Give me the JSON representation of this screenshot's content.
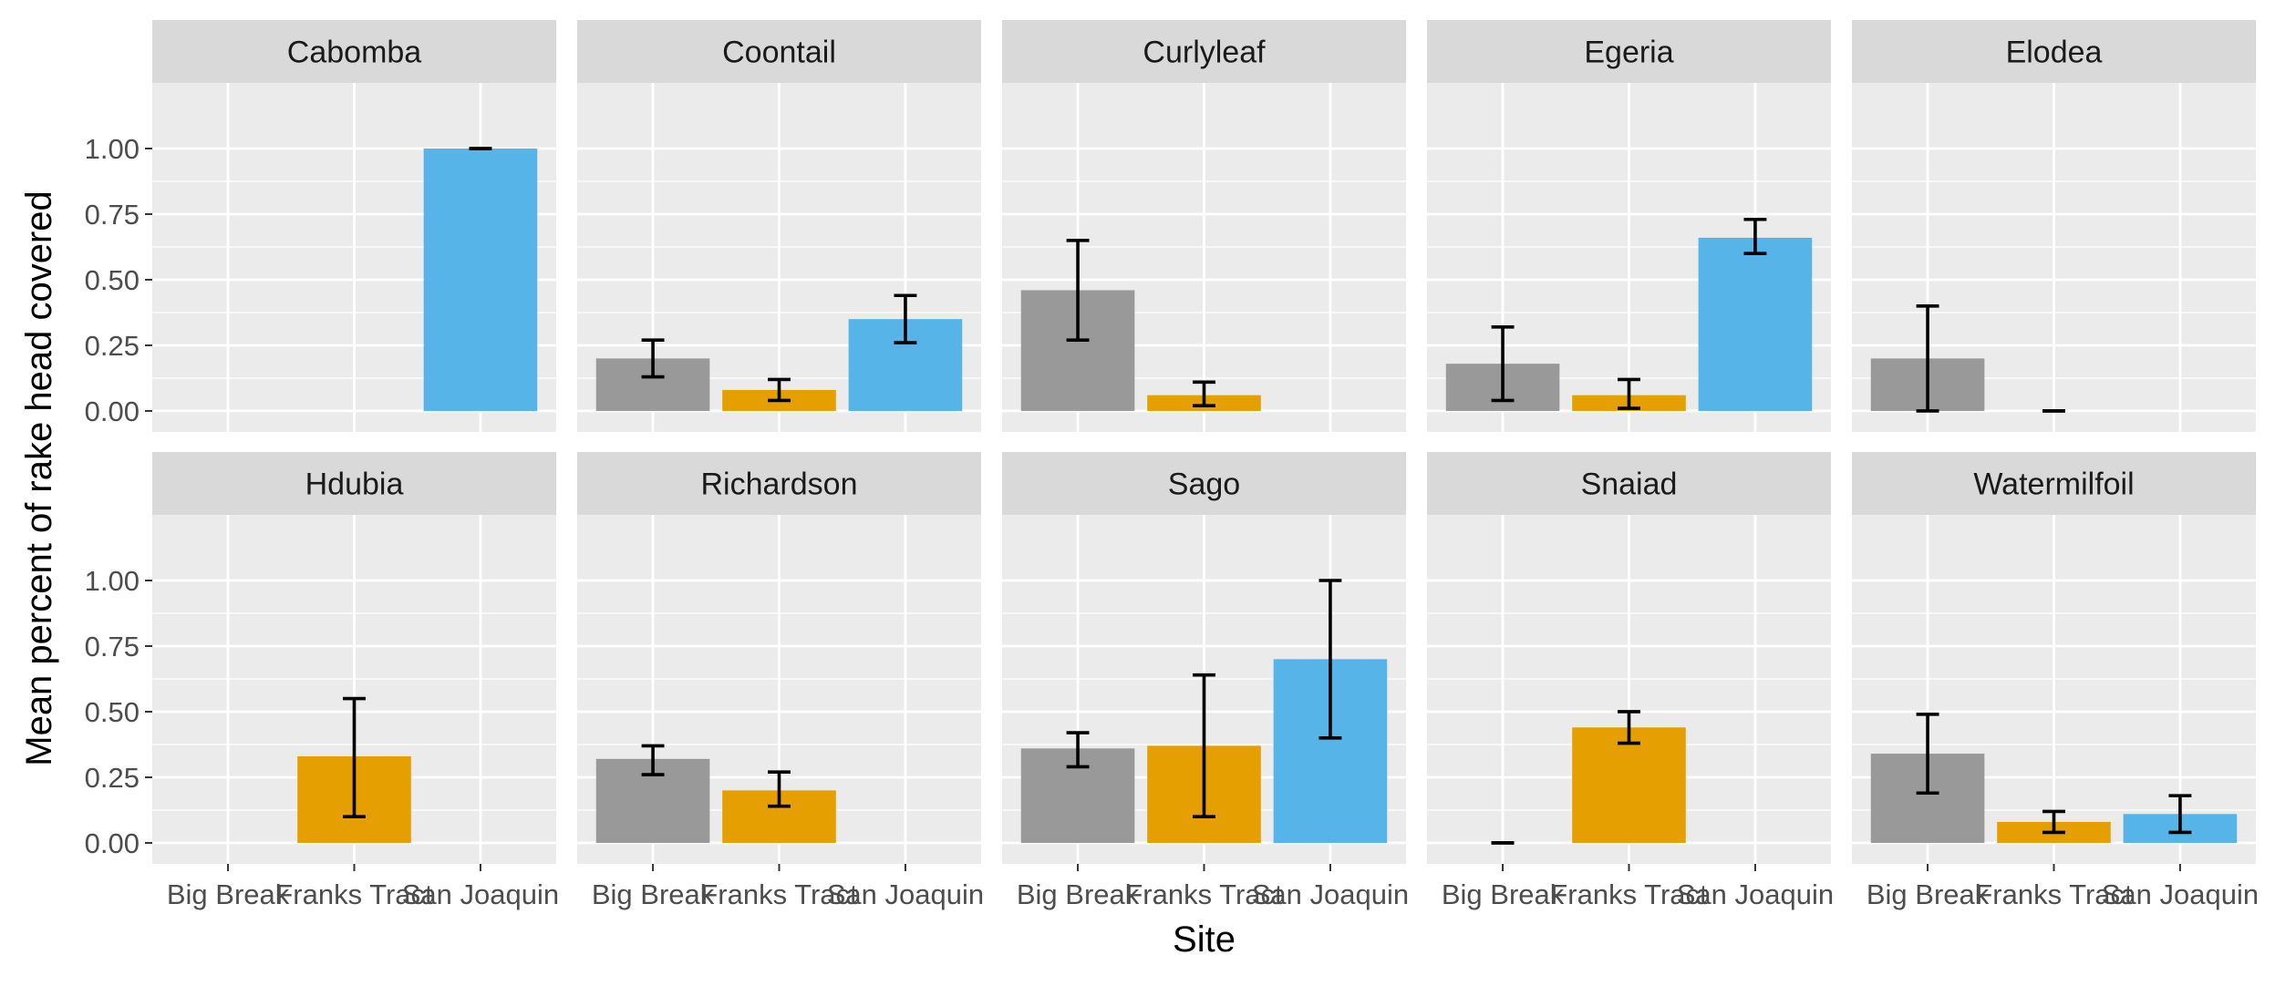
{
  "chart_data": {
    "type": "bar",
    "facet_by": "species",
    "layout": {
      "rows": 2,
      "cols": 5
    },
    "xlabel": "Site",
    "ylabel": "Mean percent of rake head covered",
    "categories": [
      "Big Break",
      "Franks Tract",
      "San Joaquin"
    ],
    "category_colors": {
      "Big Break": "#999999",
      "Franks Tract": "#E69F00",
      "San Joaquin": "#56B4E9"
    },
    "ylim": [
      -0.08,
      1.25
    ],
    "yticks": [
      0,
      0.25,
      0.5,
      0.75,
      1.0
    ],
    "ytick_labels": [
      "0.00",
      "0.25",
      "0.50",
      "0.75",
      "1.00"
    ],
    "grid": true,
    "error_bars": true,
    "facets": [
      {
        "name": "Cabomba",
        "bars": [
          {
            "site": "San Joaquin",
            "value": 1.0,
            "lo": 1.0,
            "hi": 1.0
          }
        ]
      },
      {
        "name": "Coontail",
        "bars": [
          {
            "site": "Big Break",
            "value": 0.2,
            "lo": 0.13,
            "hi": 0.27
          },
          {
            "site": "Franks Tract",
            "value": 0.08,
            "lo": 0.04,
            "hi": 0.12
          },
          {
            "site": "San Joaquin",
            "value": 0.35,
            "lo": 0.26,
            "hi": 0.44
          }
        ]
      },
      {
        "name": "Curlyleaf",
        "bars": [
          {
            "site": "Big Break",
            "value": 0.46,
            "lo": 0.27,
            "hi": 0.65
          },
          {
            "site": "Franks Tract",
            "value": 0.06,
            "lo": 0.02,
            "hi": 0.11
          }
        ]
      },
      {
        "name": "Egeria",
        "bars": [
          {
            "site": "Big Break",
            "value": 0.18,
            "lo": 0.04,
            "hi": 0.32
          },
          {
            "site": "Franks Tract",
            "value": 0.06,
            "lo": 0.01,
            "hi": 0.12
          },
          {
            "site": "San Joaquin",
            "value": 0.66,
            "lo": 0.6,
            "hi": 0.73
          }
        ]
      },
      {
        "name": "Elodea",
        "bars": [
          {
            "site": "Big Break",
            "value": 0.2,
            "lo": 0.0,
            "hi": 0.4
          },
          {
            "site": "Franks Tract",
            "value": 0.0,
            "lo": 0.0,
            "hi": 0.0
          }
        ]
      },
      {
        "name": "Hdubia",
        "bars": [
          {
            "site": "Franks Tract",
            "value": 0.33,
            "lo": 0.1,
            "hi": 0.55
          }
        ]
      },
      {
        "name": "Richardson",
        "bars": [
          {
            "site": "Big Break",
            "value": 0.32,
            "lo": 0.26,
            "hi": 0.37
          },
          {
            "site": "Franks Tract",
            "value": 0.2,
            "lo": 0.14,
            "hi": 0.27
          }
        ]
      },
      {
        "name": "Sago",
        "bars": [
          {
            "site": "Big Break",
            "value": 0.36,
            "lo": 0.29,
            "hi": 0.42
          },
          {
            "site": "Franks Tract",
            "value": 0.37,
            "lo": 0.1,
            "hi": 0.64
          },
          {
            "site": "San Joaquin",
            "value": 0.7,
            "lo": 0.4,
            "hi": 1.0
          }
        ]
      },
      {
        "name": "Snaiad",
        "bars": [
          {
            "site": "Big Break",
            "value": 0.0,
            "lo": 0.0,
            "hi": 0.0
          },
          {
            "site": "Franks Tract",
            "value": 0.44,
            "lo": 0.38,
            "hi": 0.5
          }
        ]
      },
      {
        "name": "Watermilfoil",
        "bars": [
          {
            "site": "Big Break",
            "value": 0.34,
            "lo": 0.19,
            "hi": 0.49
          },
          {
            "site": "Franks Tract",
            "value": 0.08,
            "lo": 0.04,
            "hi": 0.12
          },
          {
            "site": "San Joaquin",
            "value": 0.11,
            "lo": 0.04,
            "hi": 0.18
          }
        ]
      }
    ]
  },
  "colors": {
    "panel_background": "#EBEBEB",
    "strip_background": "#D9D9D9",
    "grid_line": "#FFFFFF",
    "error_bar": "#000000"
  }
}
